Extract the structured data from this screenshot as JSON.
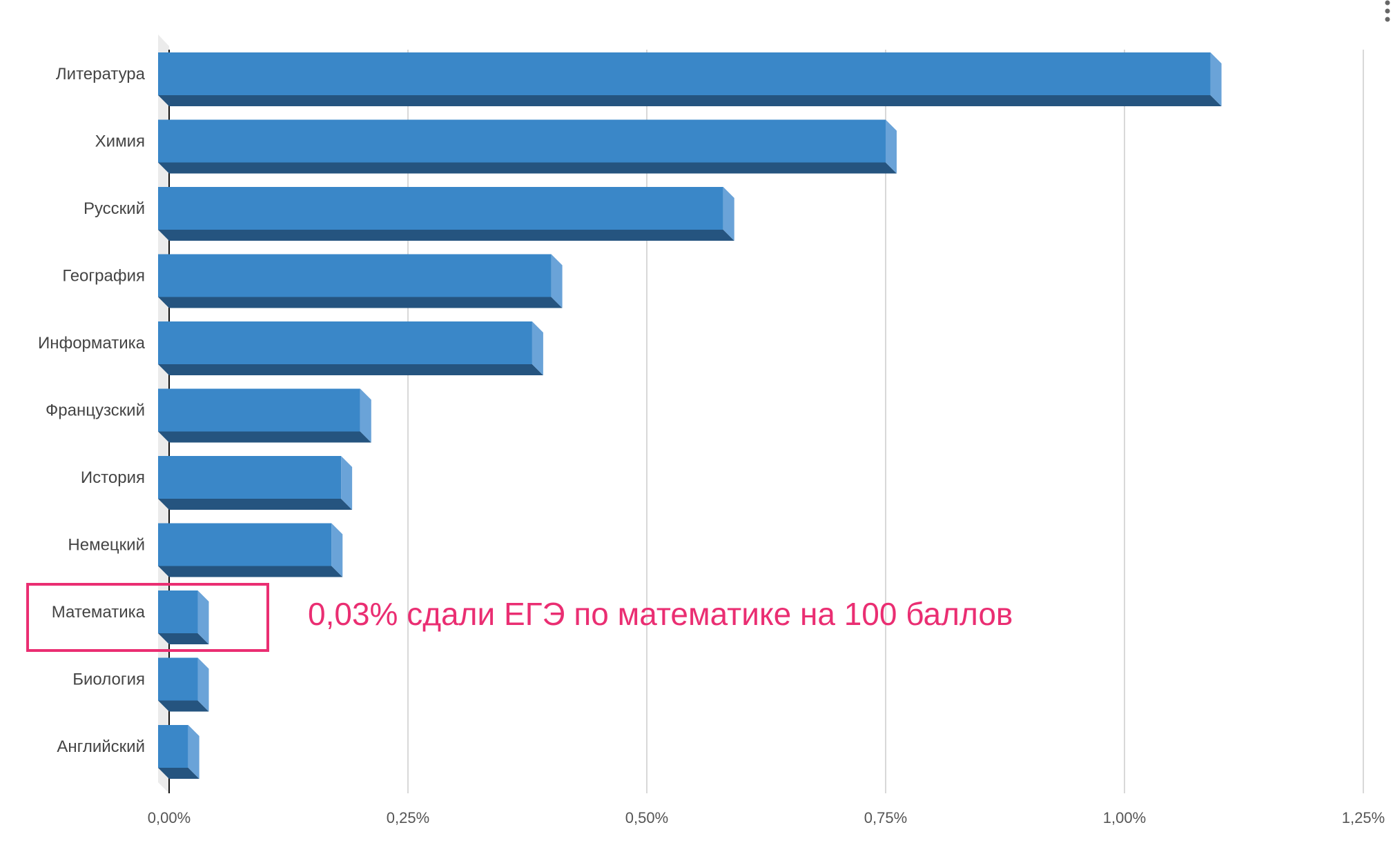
{
  "chart_data": {
    "type": "bar",
    "orientation": "horizontal",
    "style": "3d",
    "categories": [
      "Литература",
      "Химия",
      "Русский",
      "География",
      "Информатика",
      "Французский",
      "История",
      "Немецкий",
      "Математика",
      "Биология",
      "Английский"
    ],
    "values": [
      1.09,
      0.75,
      0.58,
      0.4,
      0.38,
      0.2,
      0.18,
      0.17,
      0.03,
      0.03,
      0.02
    ],
    "value_unit": "%",
    "x_ticks": [
      "0,00%",
      "0,25%",
      "0,50%",
      "0,75%",
      "1,00%",
      "1,25%"
    ],
    "xlim": [
      0,
      1.25
    ],
    "grid": true,
    "title": "",
    "xlabel": "",
    "ylabel": "",
    "colors": {
      "bar_front": "#3a87c8",
      "bar_bottom": "#25547f",
      "bar_side": "#6aa3d8",
      "grid": "#cccccc",
      "axis": "#111111",
      "floor": "#ebebeb"
    },
    "highlight": {
      "category": "Математика",
      "color": "#ea2e72"
    },
    "annotation": {
      "text": "0,03% сдали ЕГЭ по математике на 100 баллов",
      "color": "#ea2e72"
    }
  },
  "menu": {
    "icon": "vertical-dots-menu-icon"
  }
}
